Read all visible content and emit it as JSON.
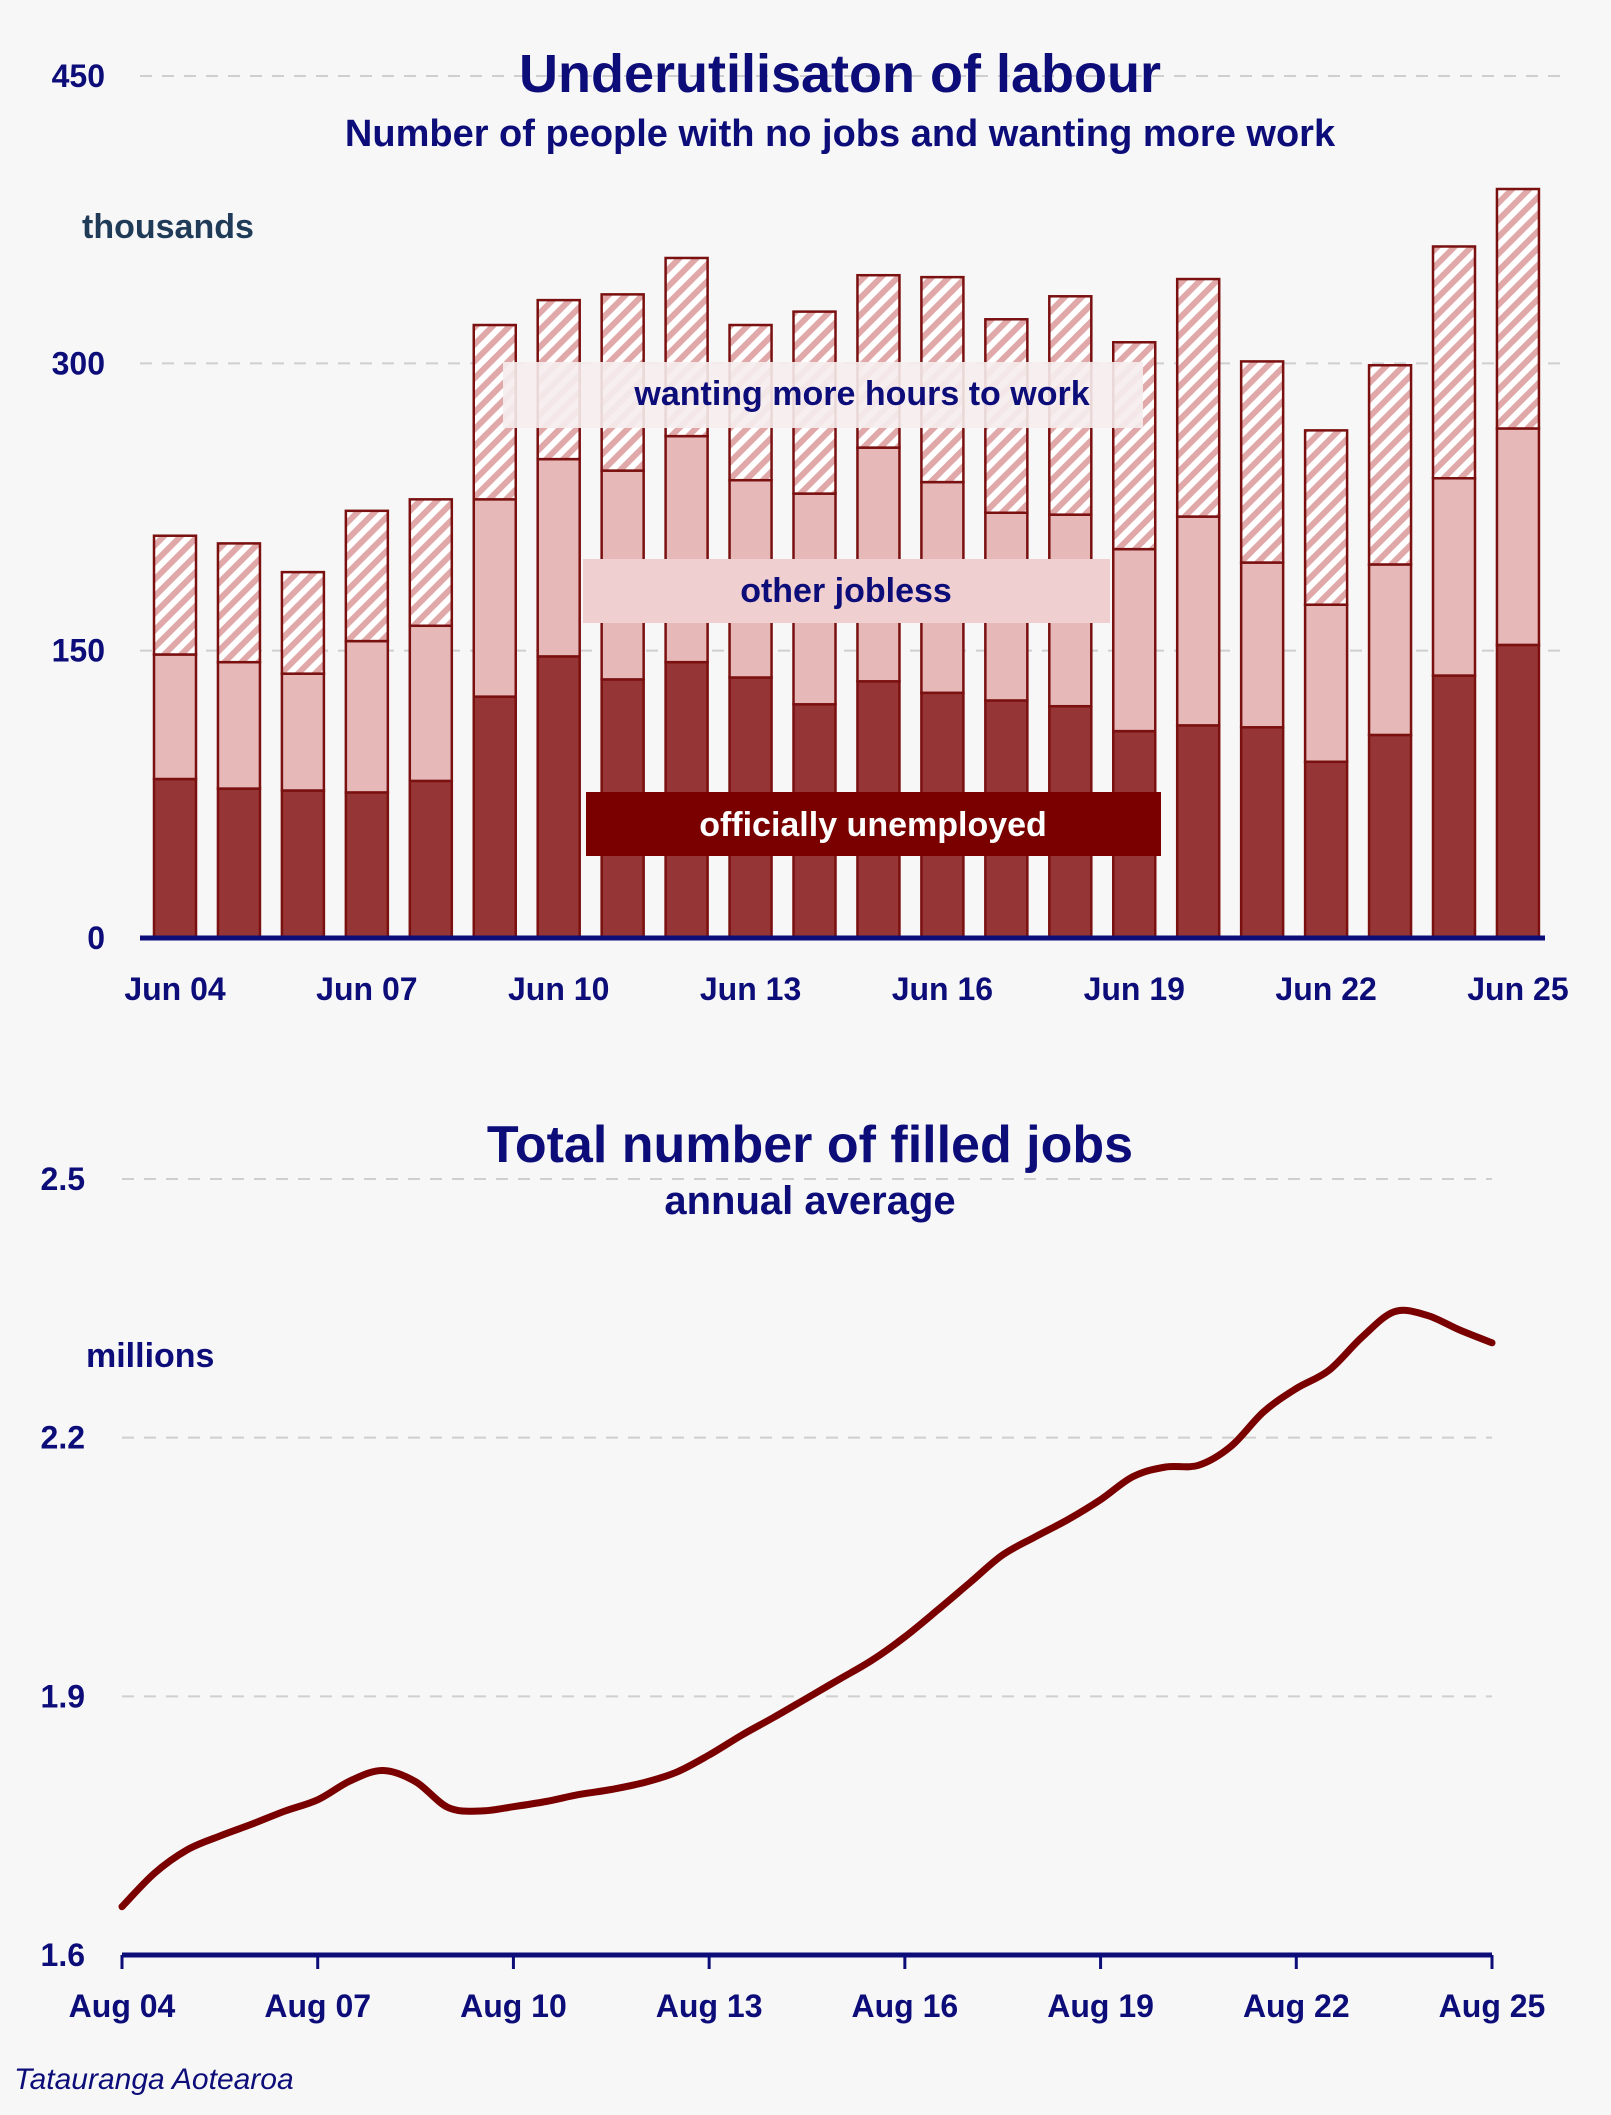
{
  "colors": {
    "navy": "#0d0d7a",
    "unemployed": "#963535",
    "other": "#e6b8b8",
    "hatch": "#e0a8a8",
    "outline": "#7a1010",
    "line": "#7a0000",
    "label_dark_bg": "#7a0000",
    "label_light_bg": "#efcfcf"
  },
  "credit": "Tatauranga Aotearoa",
  "chart_data": [
    {
      "type": "bar",
      "stacked": true,
      "title": "Underutilisaton of labour",
      "subtitle": "Number of people with no jobs and wanting more work",
      "ylabel": "thousands",
      "ylim": [
        0,
        450
      ],
      "yticks": [
        "0",
        "150",
        "300",
        "450"
      ],
      "xticks": [
        "Jun 04",
        "Jun 07",
        "Jun 10",
        "Jun 13",
        "Jun 16",
        "Jun 19",
        "Jun 22",
        "Jun 25"
      ],
      "grid": true,
      "categories": [
        "Jun 04",
        "Jun 05",
        "Jun 06",
        "Jun 07",
        "Jun 08",
        "Jun 09",
        "Jun 10",
        "Jun 11",
        "Jun 12",
        "Jun 13",
        "Jun 14",
        "Jun 15",
        "Jun 16",
        "Jun 17",
        "Jun 18",
        "Jun 19",
        "Jun 20",
        "Jun 21",
        "Jun 22",
        "Jun 23",
        "Jun 24",
        "Jun 25"
      ],
      "series": [
        {
          "name": "officially unemployed",
          "values": [
            83,
            78,
            77,
            76,
            82,
            126,
            147,
            135,
            144,
            136,
            122,
            134,
            128,
            124,
            121,
            108,
            111,
            110,
            92,
            106,
            137,
            153
          ]
        },
        {
          "name": "other jobless",
          "values": [
            65,
            66,
            61,
            79,
            81,
            103,
            103,
            109,
            118,
            103,
            110,
            122,
            110,
            98,
            100,
            95,
            109,
            86,
            82,
            89,
            103,
            113
          ]
        },
        {
          "name": "wanting more hours to work",
          "values": [
            62,
            62,
            53,
            68,
            66,
            91,
            83,
            92,
            93,
            81,
            95,
            90,
            107,
            101,
            114,
            108,
            124,
            105,
            91,
            104,
            121,
            125
          ]
        }
      ]
    },
    {
      "type": "line",
      "title": "Total number of filled jobs",
      "subtitle": "annual average",
      "ylabel": "millions",
      "ylim": [
        1.6,
        2.5
      ],
      "yticks": [
        "1.6",
        "1.9",
        "2.2",
        "2.5"
      ],
      "xticks": [
        "Aug 04",
        "Aug 07",
        "Aug 10",
        "Aug 13",
        "Aug 16",
        "Aug 19",
        "Aug 22",
        "Aug 25"
      ],
      "grid": true,
      "x": [
        "Aug 04",
        "Feb 05",
        "Aug 05",
        "Feb 06",
        "Aug 06",
        "Feb 07",
        "Aug 07",
        "Feb 08",
        "Aug 08",
        "Feb 09",
        "Aug 09",
        "Feb 10",
        "Aug 10",
        "Feb 11",
        "Aug 11",
        "Feb 12",
        "Aug 12",
        "Feb 13",
        "Aug 13",
        "Feb 14",
        "Aug 14",
        "Feb 15",
        "Aug 15",
        "Feb 16",
        "Aug 16",
        "Feb 17",
        "Aug 17",
        "Feb 18",
        "Aug 18",
        "Feb 19",
        "Aug 19",
        "Feb 20",
        "Aug 20",
        "Feb 21",
        "Aug 21",
        "Feb 22",
        "Aug 22",
        "Feb 23",
        "Aug 23",
        "Feb 24",
        "Aug 24",
        "Feb 25",
        "Aug 25"
      ],
      "series": [
        {
          "name": "",
          "values": [
            1.656,
            1.695,
            1.722,
            1.738,
            1.752,
            1.767,
            1.78,
            1.802,
            1.814,
            1.801,
            1.771,
            1.767,
            1.772,
            1.778,
            1.786,
            1.792,
            1.8,
            1.812,
            1.832,
            1.855,
            1.876,
            1.898,
            1.92,
            1.942,
            1.969,
            2.0,
            2.032,
            2.064,
            2.085,
            2.105,
            2.128,
            2.155,
            2.166,
            2.168,
            2.19,
            2.23,
            2.257,
            2.278,
            2.316,
            2.346,
            2.342,
            2.325,
            2.31
          ]
        }
      ]
    }
  ]
}
